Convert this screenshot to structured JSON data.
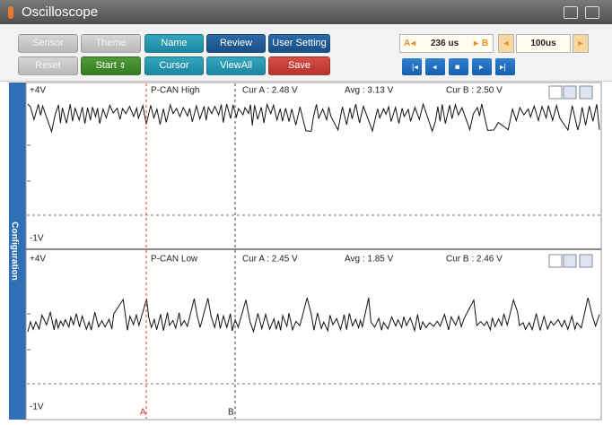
{
  "title": "Oscilloscope",
  "buttons": {
    "row1": [
      "Sensor",
      "Theme",
      "Name",
      "Review",
      "User Setting"
    ],
    "row2": [
      "Reset",
      "Start",
      "Cursor",
      "ViewAll",
      "Save"
    ]
  },
  "cursor_box": {
    "a": "A",
    "value": "236 us",
    "b": "B"
  },
  "time_div": "100us",
  "sidebar": "Configuration",
  "panels": [
    {
      "top": "+4V",
      "name": "P-CAN High",
      "cur_a": "Cur A : 2.48 V",
      "avg": "Avg : 3.13 V",
      "cur_b": "Cur B : 2.50 V",
      "bottom": "-1V"
    },
    {
      "top": "+4V",
      "name": "P-CAN Low",
      "cur_a": "Cur A : 2.45 V",
      "avg": "Avg : 1.85 V",
      "cur_b": "Cur B : 2.46 V",
      "bottom": "-1V"
    }
  ],
  "cursor_labels": [
    "A",
    "B"
  ]
}
